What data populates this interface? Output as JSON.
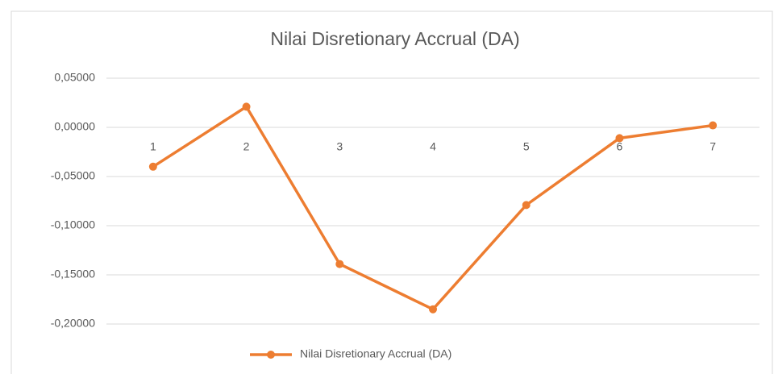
{
  "chart_data": {
    "type": "line",
    "title": "Nilai Disretionary Accrual  (DA)",
    "categories": [
      "1",
      "2",
      "3",
      "4",
      "5",
      "6",
      "7"
    ],
    "series": [
      {
        "name": "Nilai Disretionary Accrual  (DA)",
        "color": "#ed7d31",
        "values": [
          -0.04,
          0.021,
          -0.139,
          -0.185,
          -0.079,
          -0.011,
          0.002
        ]
      }
    ],
    "ylim": [
      -0.2,
      0.05
    ],
    "yticks": [
      {
        "value": 0.05,
        "label": "0,05000"
      },
      {
        "value": 0,
        "label": "0,00000"
      },
      {
        "value": -0.05,
        "label": "-0,05000"
      },
      {
        "value": -0.1,
        "label": "-0,10000"
      },
      {
        "value": -0.15,
        "label": "-0,15000"
      },
      {
        "value": -0.2,
        "label": "-0,20000"
      }
    ],
    "grid": true,
    "legend": "bottom"
  }
}
